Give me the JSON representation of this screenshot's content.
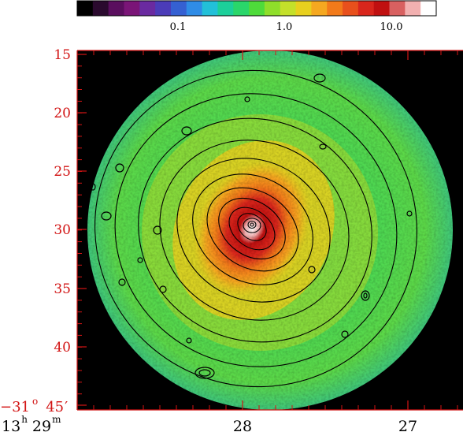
{
  "colorbar": {
    "tick_labels": [
      "0.1",
      "1.0",
      "10.0"
    ],
    "colors": [
      "#000000",
      "#2a0a2e",
      "#5a0e5e",
      "#7a1577",
      "#6a2aa0",
      "#4b3cb8",
      "#3560d2",
      "#2f8ce6",
      "#22c0d8",
      "#1ccf9a",
      "#2ad66a",
      "#4edb3a",
      "#8fde2a",
      "#c4e02a",
      "#e8d01e",
      "#f5a820",
      "#f27a1a",
      "#e8501c",
      "#d9261c",
      "#c01010",
      "#d86060",
      "#f2b0b0",
      "#ffffff"
    ]
  },
  "y_axis": {
    "tick_labels": [
      "15",
      "20",
      "25",
      "30",
      "35",
      "40"
    ]
  },
  "x_axis": {
    "ra_hours": "13",
    "ra_hours_unit": "h",
    "ra_minutes": "29",
    "ra_minutes_unit": "m",
    "tick_labels": [
      "28",
      "27"
    ]
  },
  "corner_label": {
    "dec_degrees": "−31",
    "degree_unit": "o",
    "arcmin_value": "45",
    "arcmin_unit": "′"
  },
  "colors": {
    "axis_red": "#d21414",
    "background": "#000000"
  }
}
